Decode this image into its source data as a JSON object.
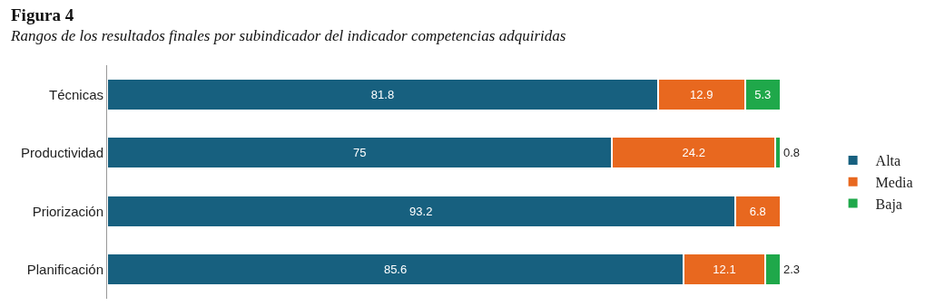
{
  "chart_data": {
    "type": "bar",
    "orientation": "horizontal",
    "stacked": true,
    "title": "Figura 4",
    "subtitle": "Rangos de los resultados finales por subindicador del indicador competencias adquiridas",
    "categories": [
      "Técnicas",
      "Productividad",
      "Priorización",
      "Planificación"
    ],
    "series": [
      {
        "name": "Alta",
        "color": "#17607f",
        "values": [
          81.8,
          75,
          93.2,
          85.6
        ]
      },
      {
        "name": "Media",
        "color": "#e8681f",
        "values": [
          12.9,
          24.2,
          6.8,
          12.1
        ]
      },
      {
        "name": "Baja",
        "color": "#1fa84a",
        "values": [
          5.3,
          0.8,
          null,
          2.3
        ]
      }
    ],
    "data_labels": true,
    "legend": "right",
    "grid": false
  }
}
